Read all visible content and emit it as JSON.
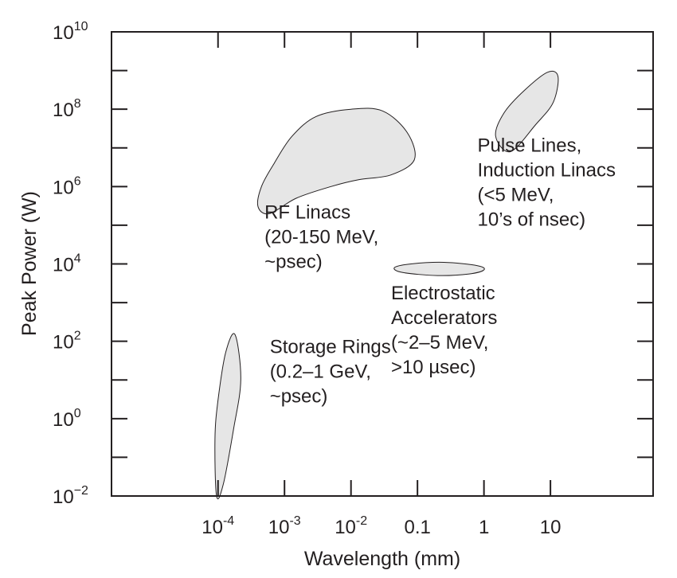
{
  "chart_data": {
    "type": "scatter",
    "xlabel": "Wavelength (mm)",
    "ylabel": "Peak Power (W)",
    "x_scale": "log",
    "y_scale": "log",
    "xlim": [
      2.5e-06,
      350
    ],
    "ylim": [
      0.01,
      10000000000
    ],
    "grid": false,
    "x_ticks": [
      {
        "value": 0.0001,
        "base": "10",
        "exp": "-4"
      },
      {
        "value": 0.001,
        "base": "10",
        "exp": "-3"
      },
      {
        "value": 0.01,
        "base": "10",
        "exp": "-2"
      },
      {
        "value": 0.1,
        "text": "0.1"
      },
      {
        "value": 1,
        "text": "1"
      },
      {
        "value": 10,
        "text": "10"
      }
    ],
    "y_major_ticks": [
      {
        "value": 0.01,
        "base": "10",
        "exp": "−2"
      },
      {
        "value": 1,
        "base": "10",
        "exp": "0"
      },
      {
        "value": 100,
        "base": "10",
        "exp": "2"
      },
      {
        "value": 10000,
        "base": "10",
        "exp": "4"
      },
      {
        "value": 1000000,
        "base": "10",
        "exp": "6"
      },
      {
        "value": 100000000,
        "base": "10",
        "exp": "8"
      },
      {
        "value": 10000000000,
        "base": "10",
        "exp": "10"
      }
    ],
    "y_minor_ticks": [
      0.1,
      10,
      1000,
      100000,
      10000000,
      1000000000
    ],
    "regions": [
      {
        "key": "storage",
        "label_lines": [
          "Storage Rings",
          "(0.2–1 GeV,",
          "~psec)"
        ],
        "label_anchor": {
          "x": 0.0006,
          "y": 50
        },
        "outline": [
          {
            "x": 9.5e-05,
            "y": 0.01
          },
          {
            "x": 9e-05,
            "y": 0.3
          },
          {
            "x": 0.0001,
            "y": 3
          },
          {
            "x": 0.00013,
            "y": 50
          },
          {
            "x": 0.00018,
            "y": 150
          },
          {
            "x": 0.00022,
            "y": 10
          },
          {
            "x": 0.00017,
            "y": 0.5
          },
          {
            "x": 0.00012,
            "y": 0.02
          }
        ]
      },
      {
        "key": "rf",
        "label_lines": [
          "RF Linacs",
          "(20-150 MeV,",
          "~psec)"
        ],
        "label_anchor": {
          "x": 0.0005,
          "y": 150000
        },
        "outline": [
          {
            "x": 0.0004,
            "y": 300000
          },
          {
            "x": 0.00045,
            "y": 1000000
          },
          {
            "x": 0.0007,
            "y": 4000000
          },
          {
            "x": 0.0013,
            "y": 20000000
          },
          {
            "x": 0.003,
            "y": 65000000
          },
          {
            "x": 0.01,
            "y": 100000000
          },
          {
            "x": 0.03,
            "y": 90000000
          },
          {
            "x": 0.07,
            "y": 25000000
          },
          {
            "x": 0.09,
            "y": 5000000
          },
          {
            "x": 0.04,
            "y": 2000000
          },
          {
            "x": 0.013,
            "y": 1500000
          },
          {
            "x": 0.005,
            "y": 1000000
          },
          {
            "x": 0.0015,
            "y": 500000
          },
          {
            "x": 0.0006,
            "y": 200000
          }
        ]
      },
      {
        "key": "electrostatic",
        "label_lines": [
          "Electrostatic",
          "Accelerators",
          "(~2–5 MeV,",
          ">10 µsec)"
        ],
        "label_anchor": {
          "x": 0.04,
          "y": 1200
        },
        "outline": [
          {
            "x": 0.045,
            "y": 8000
          },
          {
            "x": 0.08,
            "y": 10000
          },
          {
            "x": 0.25,
            "y": 11000
          },
          {
            "x": 0.8,
            "y": 9000
          },
          {
            "x": 1,
            "y": 7000
          },
          {
            "x": 0.6,
            "y": 5500
          },
          {
            "x": 0.2,
            "y": 5000
          },
          {
            "x": 0.06,
            "y": 6000
          }
        ]
      },
      {
        "key": "pulse",
        "label_lines": [
          "Pulse Lines,",
          "Induction Linacs",
          "(<5 MeV,",
          "10’s of nsec)"
        ],
        "label_anchor": {
          "x": 0.8,
          "y": 8000000
        },
        "outline": [
          {
            "x": 1.5,
            "y": 20000000
          },
          {
            "x": 2,
            "y": 80000000
          },
          {
            "x": 4,
            "y": 300000000
          },
          {
            "x": 9,
            "y": 900000000
          },
          {
            "x": 13,
            "y": 700000000
          },
          {
            "x": 11,
            "y": 150000000
          },
          {
            "x": 6,
            "y": 40000000
          },
          {
            "x": 2.5,
            "y": 8000000
          }
        ]
      }
    ]
  }
}
